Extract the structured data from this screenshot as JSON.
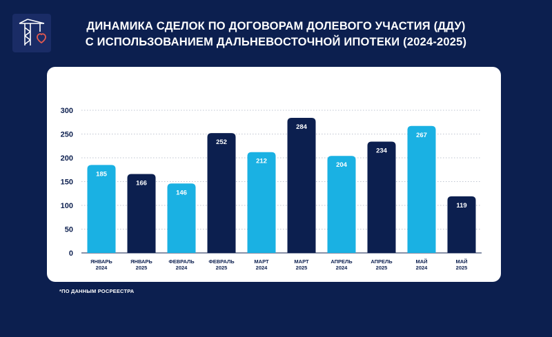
{
  "header": {
    "title_line1": "ДИНАМИКА СДЕЛОК ПО ДОГОВОРАМ ДОЛЕВОГО УЧАСТИЯ  (ДДУ)",
    "title_line2": "С ИСПОЛЬЗОВАНИЕМ ДАЛЬНЕВОСТОЧНОЙ ИПОТЕКИ (2024-2025)"
  },
  "footnote": "*ПО ДАННЫМ РОСРЕЕСТРА",
  "logo": {
    "icon": "crane-icon"
  },
  "chart_data": {
    "type": "bar",
    "categories": [
      [
        "ЯНВАРЬ",
        "2024"
      ],
      [
        "ЯНВАРЬ",
        "2025"
      ],
      [
        "ФЕВРАЛЬ",
        "2024"
      ],
      [
        "ФЕВРАЛЬ",
        "2025"
      ],
      [
        "МАРТ",
        "2024"
      ],
      [
        "МАРТ",
        "2025"
      ],
      [
        "АПРЕЛЬ",
        "2024"
      ],
      [
        "АПРЕЛЬ",
        "2025"
      ],
      [
        "МАЙ",
        "2024"
      ],
      [
        "МАЙ",
        "2025"
      ]
    ],
    "values": [
      185,
      166,
      146,
      252,
      212,
      284,
      204,
      234,
      267,
      119
    ],
    "y_ticks": [
      0,
      50,
      100,
      150,
      200,
      250,
      300
    ],
    "ylim": [
      0,
      300
    ],
    "grid": true,
    "colors": {
      "2024": "#1ab1e3",
      "2025": "#0c1f4f"
    },
    "value_label_color": "#ffffff"
  }
}
